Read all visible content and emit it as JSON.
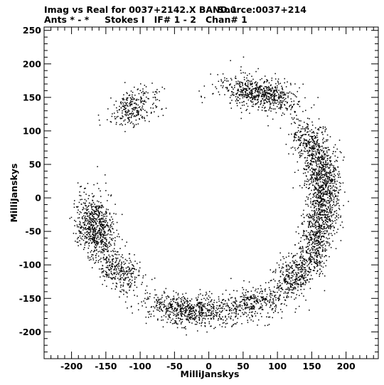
{
  "header": {
    "line1_left": "Imag vs Real for 0037+2142.X BAND.1",
    "line1_right": "Source:0037+214",
    "line2": "Ants * - *     Stokes I   IF# 1 - 2   Chan# 1"
  },
  "chart_data": {
    "type": "scatter",
    "title": "Imag vs Real for 0037+2142.X BAND.1    Source:0037+214",
    "subtitle": "Ants * - *     Stokes I   IF# 1 - 2   Chan# 1",
    "xlabel": "MilliJanskys",
    "ylabel": "MilliJanskys",
    "xlim": [
      -240,
      247
    ],
    "ylim": [
      -240,
      255
    ],
    "xticks": [
      -200,
      -150,
      -100,
      -50,
      0,
      50,
      100,
      150,
      200
    ],
    "yticks": [
      -200,
      -150,
      -100,
      -50,
      0,
      50,
      100,
      150,
      200,
      250
    ],
    "grid": false,
    "legend": "none",
    "marker_color": "#000000",
    "series": [
      {
        "distribution": "annulus",
        "points_estimate": 3200,
        "center": [
          0,
          0
        ],
        "radius_mean": 170,
        "radius_spread": 18,
        "clusters": [
          {
            "center": [
              -168,
              -45
            ],
            "count": 700,
            "spread": [
              18,
              25
            ]
          },
          {
            "center": [
              -130,
              -110
            ],
            "count": 300,
            "spread": [
              20,
              18
            ]
          },
          {
            "center": [
              -30,
              -170
            ],
            "count": 650,
            "spread": [
              35,
              14
            ]
          },
          {
            "center": [
              65,
              -160
            ],
            "count": 350,
            "spread": [
              28,
              16
            ]
          },
          {
            "center": [
              125,
              -115
            ],
            "count": 350,
            "spread": [
              20,
              22
            ]
          },
          {
            "center": [
              158,
              -50
            ],
            "count": 650,
            "spread": [
              14,
              35
            ]
          },
          {
            "center": [
              165,
              30
            ],
            "count": 700,
            "spread": [
              18,
              30
            ]
          },
          {
            "center": [
              145,
              85
            ],
            "count": 250,
            "spread": [
              16,
              20
            ]
          },
          {
            "center": [
              75,
              160
            ],
            "count": 650,
            "spread": [
              32,
              16
            ]
          },
          {
            "center": [
              -112,
              140
            ],
            "count": 280,
            "spread": [
              20,
              17
            ]
          }
        ]
      }
    ]
  }
}
